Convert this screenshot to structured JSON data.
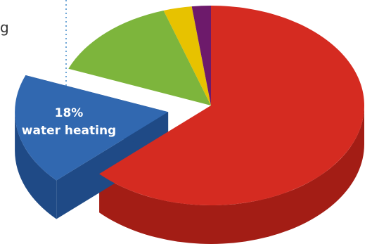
{
  "chart_data": {
    "type": "pie",
    "style": "3d-exploded",
    "slices": [
      {
        "name": "",
        "value": 63,
        "color": "#d52b21",
        "side_color": "#a31d15"
      },
      {
        "name": "water heating",
        "value": 18,
        "label_pct": "18%",
        "color": "#3168b0",
        "side_color": "#1f4a86",
        "exploded": true
      },
      {
        "name": "",
        "value": 14,
        "color": "#7db53c",
        "side_color": "#5a8a27"
      },
      {
        "name": "",
        "value": 3,
        "color": "#e7c200",
        "side_color": "#b39500"
      },
      {
        "name": "",
        "value": 2,
        "color": "#6d1a6b",
        "side_color": "#4d104b"
      }
    ],
    "partial_edge_text": "g"
  }
}
